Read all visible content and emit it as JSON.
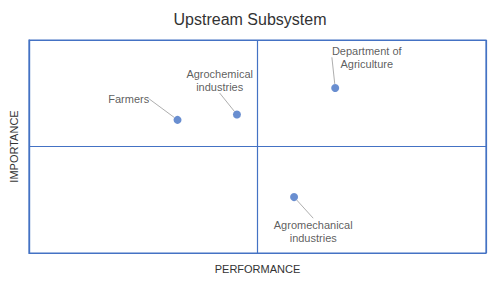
{
  "chart_data": {
    "type": "scatter",
    "title": "Upstream Subsystem",
    "xlabel": "PERFORMANCE",
    "ylabel": "IMPORTANCE",
    "x": [
      1.3,
      1.82,
      2.68,
      2.32
    ],
    "values": [
      2.5,
      2.6,
      3.1,
      1.05
    ],
    "labels": [
      "Farmers",
      "Agrochemical\nindustries",
      "Department of\nAgriculture",
      "Agromechanical\nindustries"
    ],
    "color": "#4472C4",
    "xlim": [
      0,
      4
    ],
    "ylim": [
      0,
      4
    ],
    "xticks": [
      0,
      2,
      4
    ],
    "yticks": [
      0,
      2,
      4
    ],
    "grid": true,
    "tick_labels": false
  }
}
